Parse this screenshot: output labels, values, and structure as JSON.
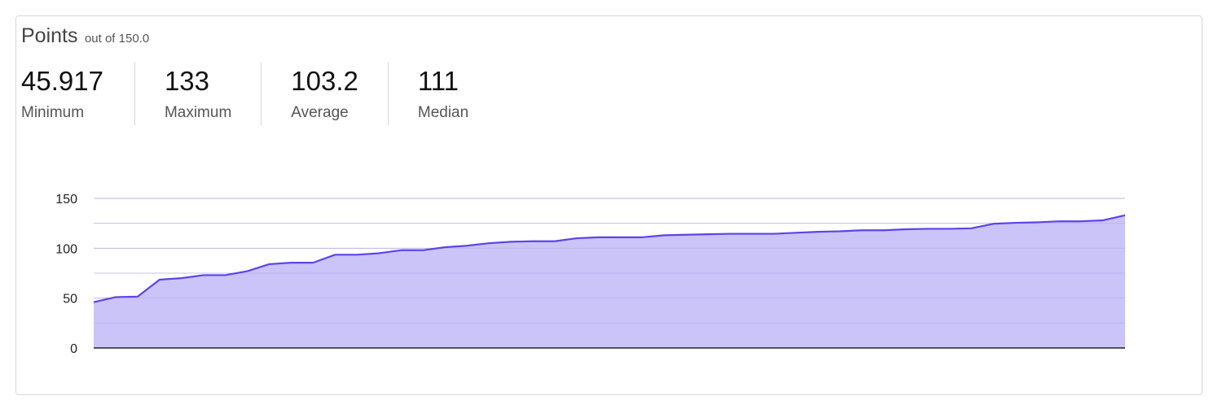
{
  "header": {
    "title": "Points",
    "subtitle": "out of 150.0"
  },
  "stats": [
    {
      "value": "45.917",
      "label": "Minimum"
    },
    {
      "value": "133",
      "label": "Maximum"
    },
    {
      "value": "103.2",
      "label": "Average"
    },
    {
      "value": "111",
      "label": "Median"
    }
  ],
  "chart_data": {
    "type": "area",
    "title": "",
    "xlabel": "",
    "ylabel": "",
    "ylim": [
      0,
      150
    ],
    "yticks": [
      0,
      50,
      100,
      150
    ],
    "grid": true,
    "line_color": "#5b45e6",
    "fill_color": "#c8c1f8",
    "values": [
      45.917,
      51,
      51.5,
      68.5,
      70,
      73,
      73,
      77,
      84,
      85.5,
      85.5,
      93.5,
      93.5,
      95,
      98,
      98,
      101,
      102.5,
      105,
      106.5,
      107,
      107,
      110,
      111,
      111,
      111,
      113,
      113.5,
      114,
      114.5,
      114.5,
      114.5,
      115.5,
      116.5,
      117,
      118,
      118,
      119,
      119.5,
      119.5,
      120,
      124.5,
      125.5,
      126,
      127,
      127,
      128,
      133
    ]
  }
}
